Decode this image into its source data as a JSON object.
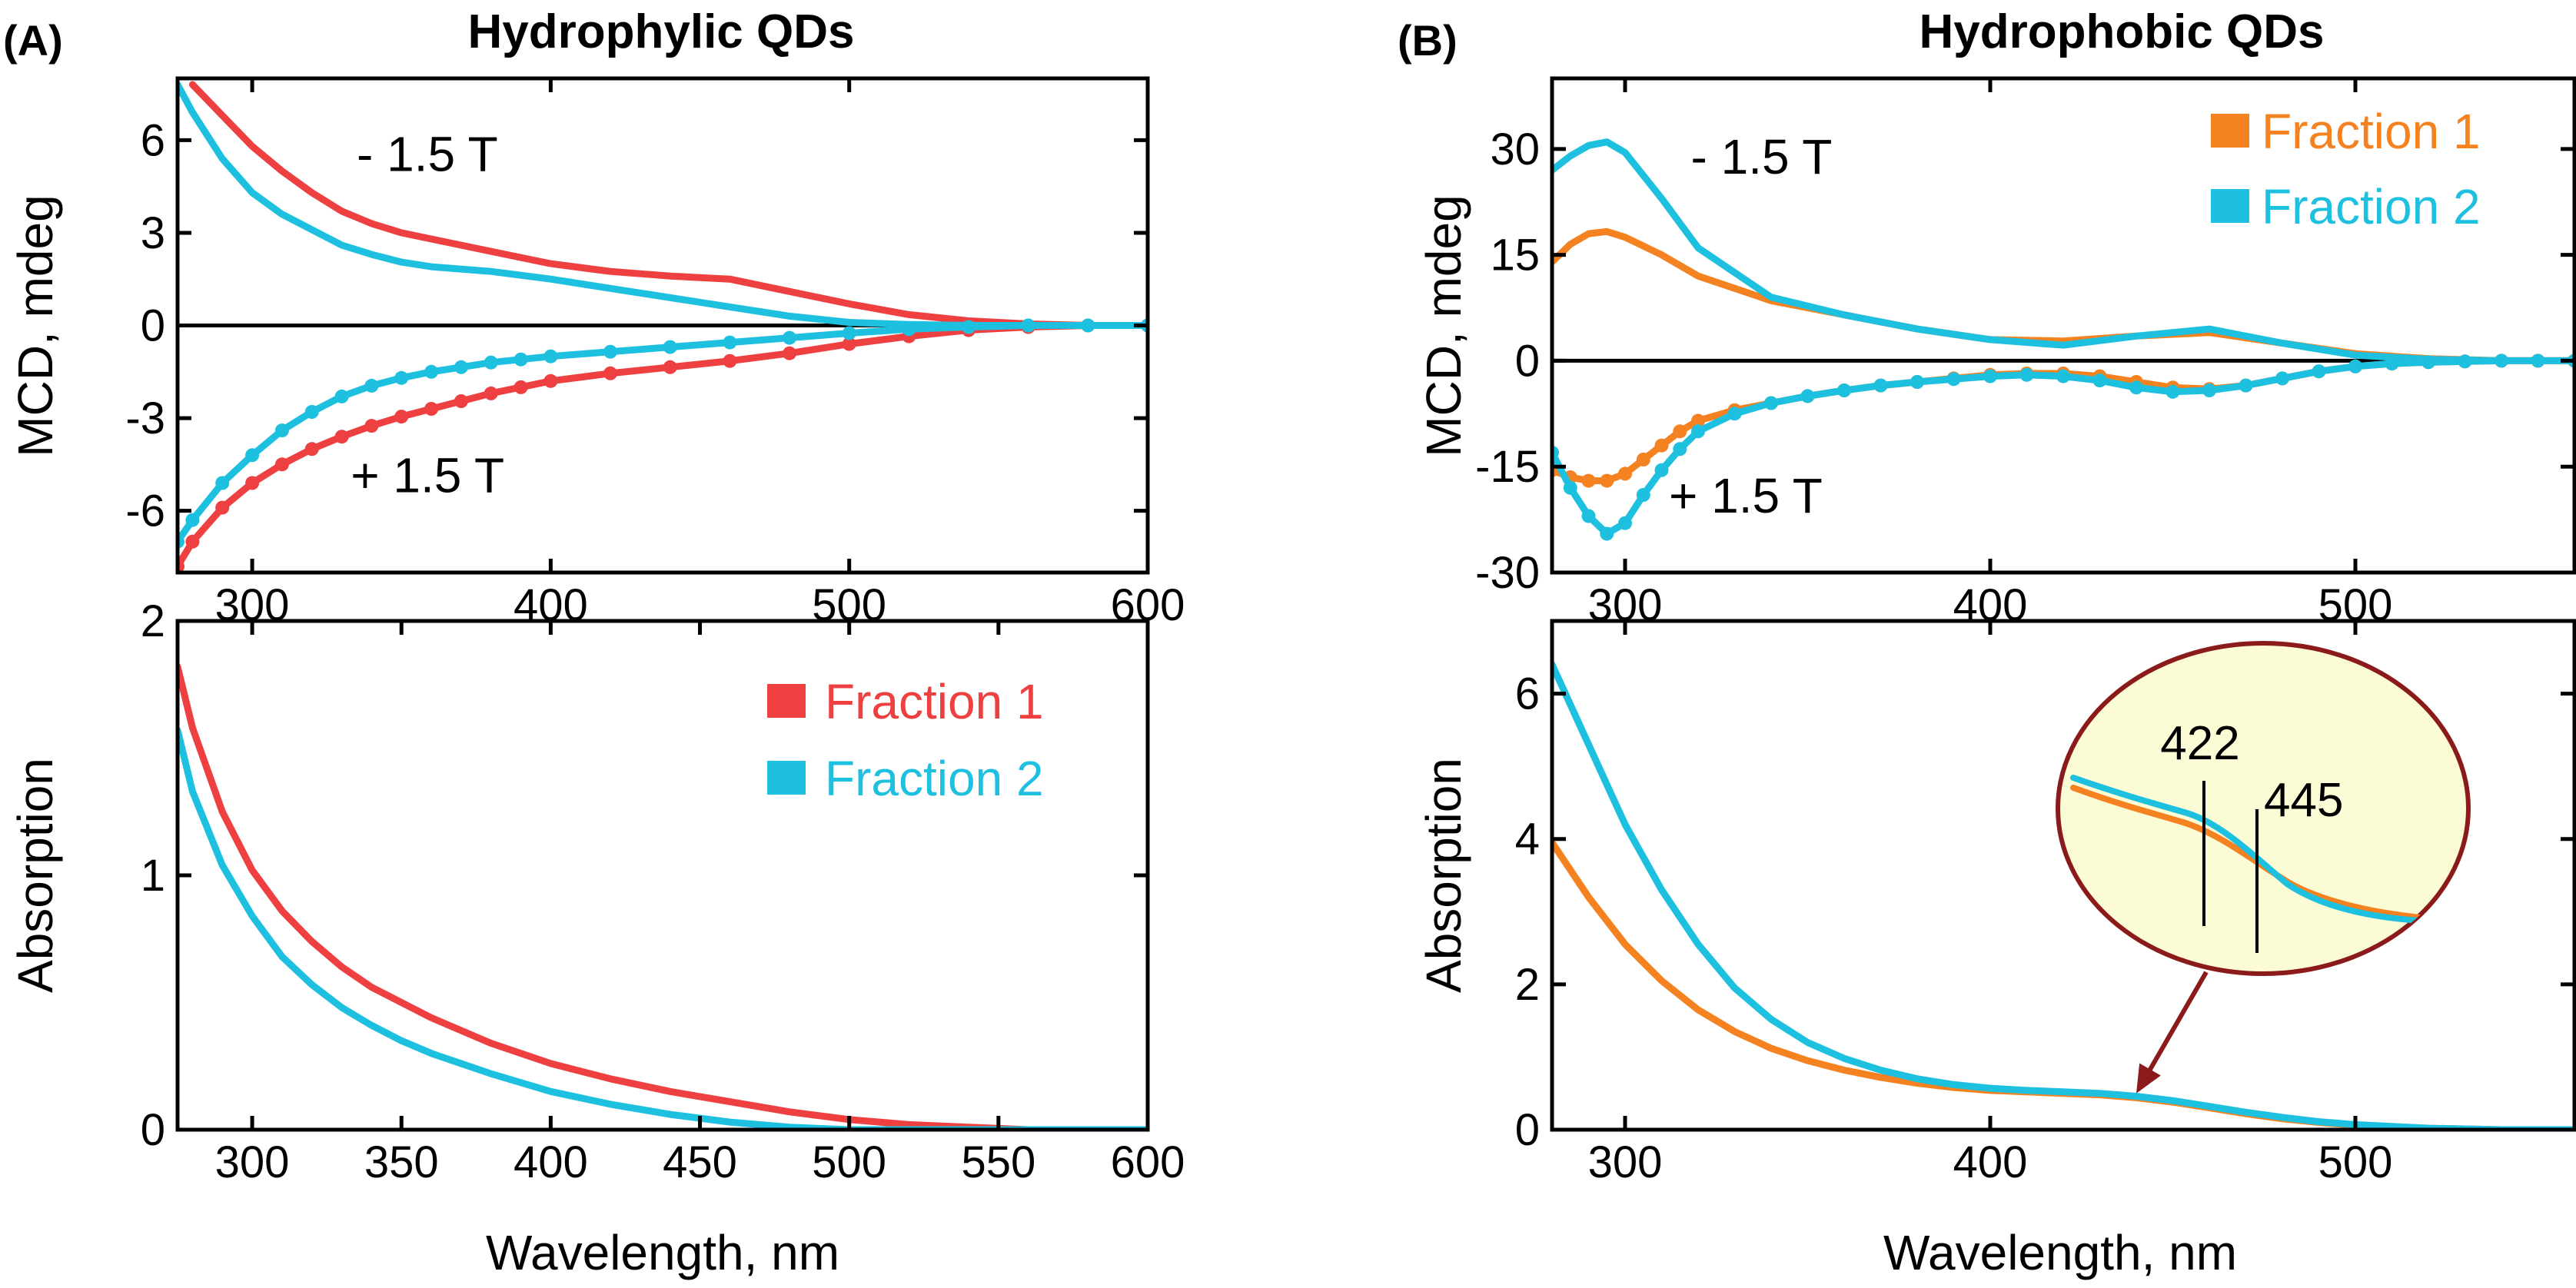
{
  "figure": {
    "panel_a_label": "(A)",
    "panel_b_label": "(B)",
    "panel_a_title": "Hydrophylic QDs",
    "panel_b_title": "Hydrophobic QDs"
  },
  "colors": {
    "a_fraction1": "#ee4040",
    "a_fraction2": "#1ec0e0",
    "b_fraction1": "#f58220",
    "b_fraction2": "#1ec0e0",
    "inset_fill": "#fbfbd6",
    "inset_border": "#8b1a1a",
    "zero_line": "#000000"
  },
  "chart_data": [
    {
      "id": "a_mcd",
      "type": "line",
      "title": "Hydrophylic QDs",
      "xlabel": "",
      "ylabel": "MCD, mdeg",
      "xlim": [
        275,
        600
      ],
      "ylim": [
        -8,
        8
      ],
      "xticks": [
        300,
        400,
        500,
        600
      ],
      "yticks": [
        6,
        3,
        0,
        -3,
        -6
      ],
      "annotations": [
        {
          "text": "- 1.5 T",
          "x": 335,
          "y": 5.0
        },
        {
          "text": "+ 1.5 T",
          "x": 333,
          "y": -5.4
        }
      ],
      "series": [
        {
          "name": "Fraction 1 (-1.5 T)",
          "color_key": "a_fraction1",
          "markers": false,
          "x": [
            280,
            290,
            300,
            310,
            320,
            330,
            340,
            350,
            360,
            380,
            400,
            420,
            440,
            460,
            480,
            500,
            520,
            540,
            560,
            580,
            600
          ],
          "y": [
            7.8,
            6.8,
            5.8,
            5.0,
            4.3,
            3.7,
            3.3,
            3.0,
            2.8,
            2.4,
            2.0,
            1.75,
            1.6,
            1.5,
            1.1,
            0.7,
            0.35,
            0.15,
            0.05,
            0.0,
            0.0
          ]
        },
        {
          "name": "Fraction 2 (-1.5 T)",
          "color_key": "a_fraction2",
          "markers": false,
          "x": [
            275,
            280,
            290,
            300,
            310,
            320,
            330,
            340,
            350,
            360,
            380,
            400,
            420,
            440,
            460,
            480,
            500,
            520,
            540,
            560,
            580,
            600
          ],
          "y": [
            7.8,
            6.9,
            5.4,
            4.3,
            3.6,
            3.1,
            2.6,
            2.3,
            2.05,
            1.9,
            1.75,
            1.5,
            1.2,
            0.9,
            0.6,
            0.3,
            0.1,
            0.03,
            0.0,
            0.0,
            0.0,
            0.0
          ]
        },
        {
          "name": "Fraction 1 (+1.5 T)",
          "color_key": "a_fraction1",
          "markers": true,
          "x": [
            275,
            280,
            290,
            300,
            310,
            320,
            330,
            340,
            350,
            360,
            370,
            380,
            390,
            400,
            420,
            440,
            460,
            480,
            500,
            520,
            540,
            560,
            580,
            600
          ],
          "y": [
            -7.8,
            -7.0,
            -5.9,
            -5.1,
            -4.5,
            -4.0,
            -3.6,
            -3.25,
            -2.95,
            -2.7,
            -2.45,
            -2.2,
            -2.0,
            -1.8,
            -1.55,
            -1.35,
            -1.15,
            -0.9,
            -0.6,
            -0.35,
            -0.15,
            -0.05,
            0.0,
            0.0
          ]
        },
        {
          "name": "Fraction 2 (+1.5 T)",
          "color_key": "a_fraction2",
          "markers": true,
          "x": [
            275,
            280,
            290,
            300,
            310,
            320,
            330,
            340,
            350,
            360,
            370,
            380,
            390,
            400,
            420,
            440,
            460,
            480,
            500,
            520,
            540,
            560,
            580,
            600
          ],
          "y": [
            -7.0,
            -6.3,
            -5.1,
            -4.2,
            -3.4,
            -2.8,
            -2.3,
            -1.95,
            -1.7,
            -1.5,
            -1.35,
            -1.2,
            -1.1,
            -1.0,
            -0.85,
            -0.7,
            -0.55,
            -0.4,
            -0.25,
            -0.12,
            -0.05,
            0.0,
            0.0,
            0.0
          ]
        }
      ]
    },
    {
      "id": "a_abs",
      "type": "line",
      "xlabel": "Wavelength, nm",
      "ylabel": "Absorption",
      "xlim": [
        275,
        600
      ],
      "ylim": [
        0,
        2
      ],
      "xticks": [
        300,
        350,
        400,
        450,
        500,
        550,
        600
      ],
      "yticks": [
        0,
        1,
        2
      ],
      "legend": [
        "Fraction 1",
        "Fraction 2"
      ],
      "legend_position": "top-right",
      "series": [
        {
          "name": "Fraction 1",
          "color_key": "a_fraction1",
          "x": [
            275,
            280,
            290,
            300,
            310,
            320,
            330,
            340,
            350,
            360,
            380,
            400,
            420,
            440,
            460,
            480,
            500,
            520,
            540,
            560,
            580,
            600
          ],
          "y": [
            1.82,
            1.58,
            1.25,
            1.02,
            0.86,
            0.74,
            0.64,
            0.56,
            0.5,
            0.44,
            0.34,
            0.26,
            0.2,
            0.15,
            0.11,
            0.07,
            0.04,
            0.02,
            0.01,
            0.0,
            0.0,
            0.0
          ]
        },
        {
          "name": "Fraction 2",
          "color_key": "a_fraction2",
          "x": [
            275,
            280,
            290,
            300,
            310,
            320,
            330,
            340,
            350,
            360,
            380,
            400,
            420,
            440,
            460,
            480,
            500,
            520,
            540,
            560,
            580,
            600
          ],
          "y": [
            1.57,
            1.33,
            1.04,
            0.84,
            0.68,
            0.57,
            0.48,
            0.41,
            0.35,
            0.3,
            0.22,
            0.15,
            0.1,
            0.06,
            0.03,
            0.01,
            0.0,
            0.0,
            0.0,
            0.0,
            0.0,
            0.0
          ]
        }
      ]
    },
    {
      "id": "b_mcd",
      "type": "line",
      "title": "Hydrophobic QDs",
      "xlabel": "",
      "ylabel": "MCD, mdeg",
      "xlim": [
        280,
        560
      ],
      "ylim": [
        -30,
        40
      ],
      "xticks": [
        300,
        400,
        500
      ],
      "yticks": [
        30,
        15,
        0,
        -15,
        -30
      ],
      "legend": [
        "Fraction 1",
        "Fraction 2"
      ],
      "legend_position": "top-right",
      "annotations": [
        {
          "text": "- 1.5 T",
          "x": 318,
          "y": 26.5
        },
        {
          "text": "+ 1.5 T",
          "x": 312,
          "y": -21.5
        }
      ],
      "series": [
        {
          "name": "Fraction 1 (-1.5 T)",
          "color_key": "b_fraction1",
          "markers": false,
          "x": [
            280,
            285,
            290,
            295,
            300,
            310,
            320,
            340,
            360,
            380,
            400,
            420,
            440,
            460,
            480,
            500,
            520,
            540,
            560
          ],
          "y": [
            14,
            16.5,
            18,
            18.3,
            17.5,
            15,
            12,
            8.5,
            6.5,
            4.5,
            3.0,
            2.8,
            3.5,
            4.0,
            2.5,
            1.0,
            0.3,
            0.0,
            0.0
          ]
        },
        {
          "name": "Fraction 2 (-1.5 T)",
          "color_key": "b_fraction2",
          "markers": false,
          "x": [
            280,
            285,
            290,
            295,
            300,
            310,
            320,
            340,
            360,
            380,
            400,
            420,
            440,
            460,
            480,
            500,
            520,
            540,
            560
          ],
          "y": [
            27,
            29,
            30.5,
            31,
            29.5,
            23,
            16,
            9,
            6.5,
            4.5,
            3.0,
            2.2,
            3.5,
            4.5,
            2.5,
            0.8,
            0.2,
            0.0,
            0.0
          ]
        },
        {
          "name": "Fraction 1 (+1.5 T)",
          "color_key": "b_fraction1",
          "markers": true,
          "x": [
            280,
            285,
            290,
            295,
            300,
            305,
            310,
            315,
            320,
            330,
            340,
            350,
            360,
            370,
            380,
            390,
            400,
            410,
            420,
            430,
            440,
            450,
            460,
            470,
            480,
            490,
            500,
            510,
            520,
            530,
            540,
            550,
            560
          ],
          "y": [
            -15.5,
            -16.5,
            -17,
            -17,
            -16,
            -14,
            -12,
            -10,
            -8.5,
            -7,
            -6,
            -5,
            -4.2,
            -3.5,
            -3,
            -2.5,
            -2.0,
            -1.8,
            -1.8,
            -2.2,
            -3.0,
            -3.8,
            -4.0,
            -3.5,
            -2.5,
            -1.5,
            -0.8,
            -0.4,
            -0.2,
            -0.1,
            0.0,
            0.0,
            0.0
          ]
        },
        {
          "name": "Fraction 2 (+1.5 T)",
          "color_key": "b_fraction2",
          "markers": true,
          "x": [
            280,
            285,
            290,
            295,
            300,
            305,
            310,
            315,
            320,
            330,
            340,
            350,
            360,
            370,
            380,
            390,
            400,
            410,
            420,
            430,
            440,
            450,
            460,
            470,
            480,
            490,
            500,
            510,
            520,
            530,
            540,
            550,
            560
          ],
          "y": [
            -13,
            -18,
            -22,
            -24.5,
            -23,
            -19,
            -15.5,
            -12.5,
            -10,
            -7.5,
            -6,
            -5,
            -4.2,
            -3.5,
            -3,
            -2.6,
            -2.2,
            -2.0,
            -2.2,
            -2.8,
            -3.8,
            -4.4,
            -4.2,
            -3.5,
            -2.5,
            -1.5,
            -0.8,
            -0.4,
            -0.2,
            -0.1,
            0.0,
            0.0,
            0.0
          ]
        }
      ]
    },
    {
      "id": "b_abs",
      "type": "line",
      "xlabel": "Wavelength, nm",
      "ylabel": "Absorption",
      "xlim": [
        280,
        560
      ],
      "ylim": [
        0,
        7
      ],
      "xticks": [
        300,
        400,
        500
      ],
      "yticks": [
        0,
        2,
        4,
        6
      ],
      "inset": {
        "description": "zoom of 400-500 nm region",
        "labels": [
          "422",
          "445"
        ],
        "pointer_target_x": 440,
        "pointer_target_y": 0.5
      },
      "series": [
        {
          "name": "Fraction 1",
          "color_key": "b_fraction1",
          "x": [
            280,
            290,
            300,
            310,
            320,
            330,
            340,
            350,
            360,
            370,
            380,
            390,
            400,
            410,
            420,
            430,
            440,
            450,
            460,
            470,
            480,
            490,
            500,
            520,
            540,
            560
          ],
          "y": [
            3.95,
            3.2,
            2.55,
            2.05,
            1.65,
            1.35,
            1.12,
            0.95,
            0.82,
            0.72,
            0.64,
            0.58,
            0.54,
            0.52,
            0.5,
            0.48,
            0.44,
            0.38,
            0.3,
            0.22,
            0.15,
            0.1,
            0.06,
            0.02,
            0.0,
            0.0
          ]
        },
        {
          "name": "Fraction 2",
          "color_key": "b_fraction2",
          "x": [
            280,
            290,
            300,
            310,
            320,
            330,
            340,
            350,
            360,
            370,
            380,
            390,
            400,
            410,
            420,
            430,
            440,
            450,
            460,
            470,
            480,
            490,
            500,
            520,
            540,
            560
          ],
          "y": [
            6.4,
            5.3,
            4.2,
            3.3,
            2.55,
            1.95,
            1.52,
            1.2,
            0.98,
            0.82,
            0.7,
            0.62,
            0.57,
            0.54,
            0.52,
            0.5,
            0.46,
            0.4,
            0.32,
            0.24,
            0.17,
            0.11,
            0.07,
            0.02,
            0.0,
            0.0
          ]
        }
      ]
    }
  ]
}
